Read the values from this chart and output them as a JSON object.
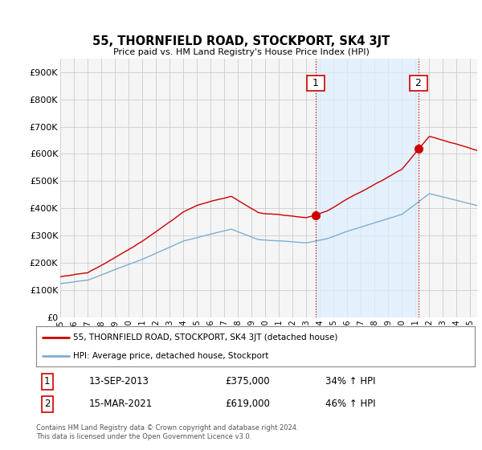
{
  "title": "55, THORNFIELD ROAD, STOCKPORT, SK4 3JT",
  "subtitle": "Price paid vs. HM Land Registry's House Price Index (HPI)",
  "hpi_label": "HPI: Average price, detached house, Stockport",
  "property_label": "55, THORNFIELD ROAD, STOCKPORT, SK4 3JT (detached house)",
  "property_color": "#cc0000",
  "hpi_color": "#7bafd4",
  "vline_color": "#cc0000",
  "shade_color": "#ddeeff",
  "plot_bg": "#f5f5f5",
  "grid_color": "#cccccc",
  "ylim": [
    0,
    950000
  ],
  "yticks": [
    0,
    100000,
    200000,
    300000,
    400000,
    500000,
    600000,
    700000,
    800000,
    900000
  ],
  "annotation1": {
    "label": "1",
    "date_str": "13-SEP-2013",
    "price": 375000,
    "pct": "34% ↑ HPI",
    "year": 2013.7
  },
  "annotation2": {
    "label": "2",
    "date_str": "15-MAR-2021",
    "price": 619000,
    "pct": "46% ↑ HPI",
    "year": 2021.2
  },
  "footer1": "Contains HM Land Registry data © Crown copyright and database right 2024.",
  "footer2": "This data is licensed under the Open Government Licence v3.0.",
  "xstart": 1995.0,
  "xend": 2025.5,
  "ann1_prop_value": 375000,
  "ann2_prop_value": 619000,
  "ann1_hpi_value": 280000,
  "ann2_hpi_value": 424000
}
